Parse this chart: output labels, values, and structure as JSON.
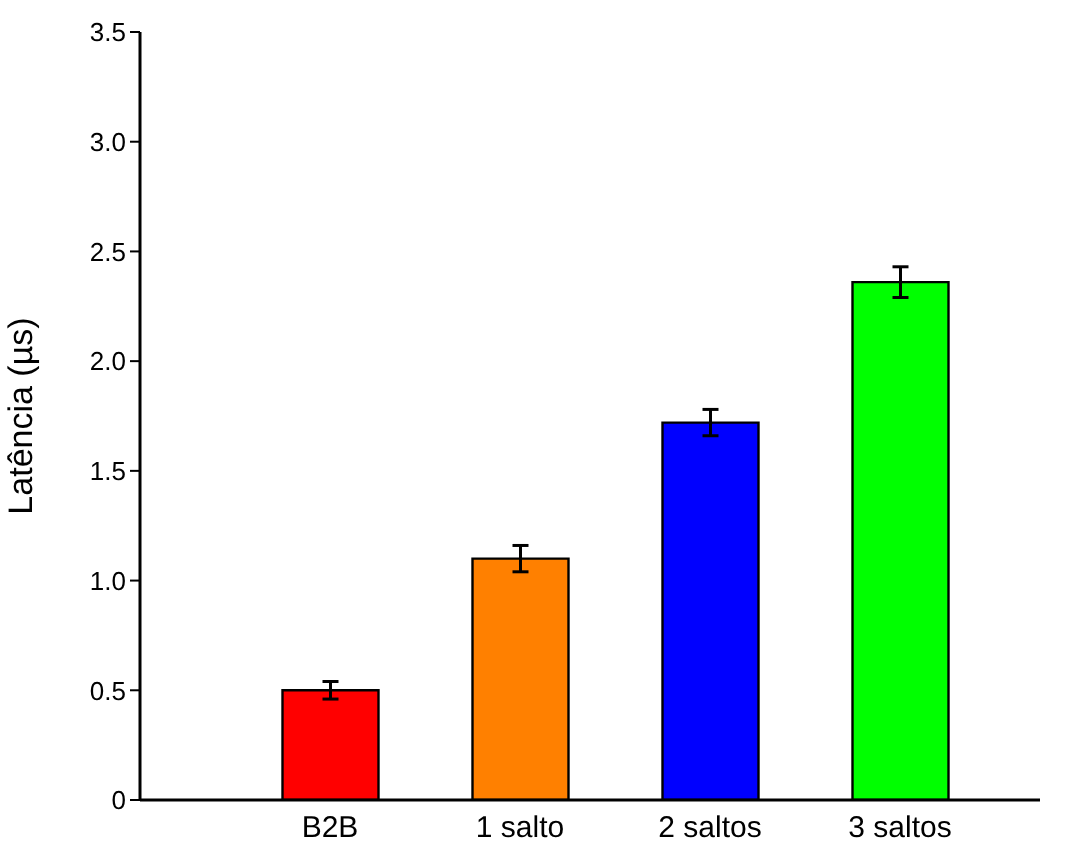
{
  "chart_data": {
    "type": "bar",
    "ylabel": "Latência (µs)",
    "categories": [
      "B2B",
      "1 salto",
      "2 saltos",
      "3 saltos"
    ],
    "values": [
      0.5,
      1.1,
      1.72,
      2.36
    ],
    "colors": [
      "#ff0000",
      "#ff8000",
      "#0000ff",
      "#00ff00"
    ],
    "errors": [
      0.04,
      0.06,
      0.06,
      0.07
    ],
    "ylim": [
      0,
      3.5
    ],
    "yticks": [
      0,
      0.5,
      {
        "value": 1,
        "label": "1.0"
      },
      1.5,
      {
        "value": 2,
        "label": "2.0"
      },
      2.5,
      {
        "value": 3,
        "label": "3.0"
      },
      3.5
    ],
    "grid": false,
    "legend": false
  }
}
